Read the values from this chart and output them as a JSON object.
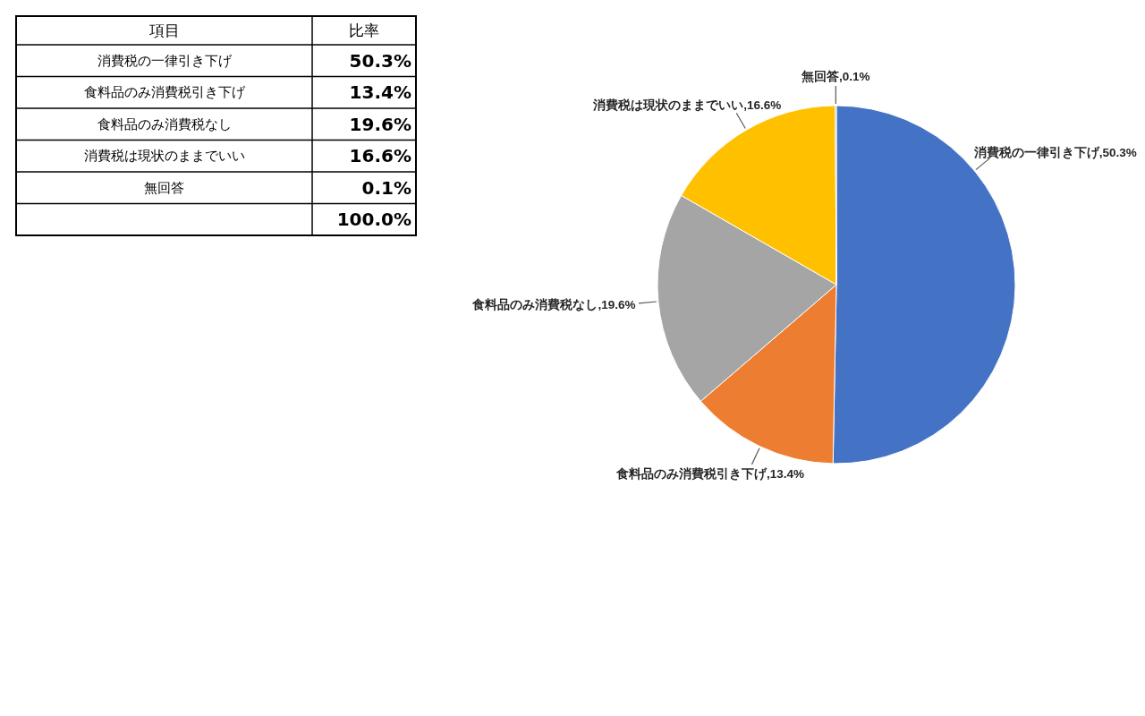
{
  "chart_data": [
    {
      "type": "other",
      "categories": [
        "消費税の一律引き下げ",
        "食料品のみ消費税引き下げ",
        "食料品のみ消費税なし",
        "消費税は現状のままでいい",
        "無回答"
      ],
      "value_labels": [
        "50.3%",
        "13.4%",
        "19.6%",
        "16.6%",
        "0.1%"
      ],
      "annotations": [
        "項目",
        "比率",
        "100.0%"
      ]
    },
    {
      "type": "pie",
      "categories": [
        "消費税の一律引き下げ",
        "食料品のみ消費税引き下げ",
        "食料品のみ消費税なし",
        "消費税は現状のままでいい",
        "無回答"
      ],
      "values": [
        50.3,
        13.4,
        19.6,
        16.6,
        0.1
      ],
      "colors": [
        "#4472c4",
        "#ed7d31",
        "#a5a5a5",
        "#ffc000",
        "#5b9bd5"
      ],
      "value_labels": [
        "50.3%",
        "13.4%",
        "19.6%",
        "16.6%",
        "0.1%"
      ]
    }
  ]
}
